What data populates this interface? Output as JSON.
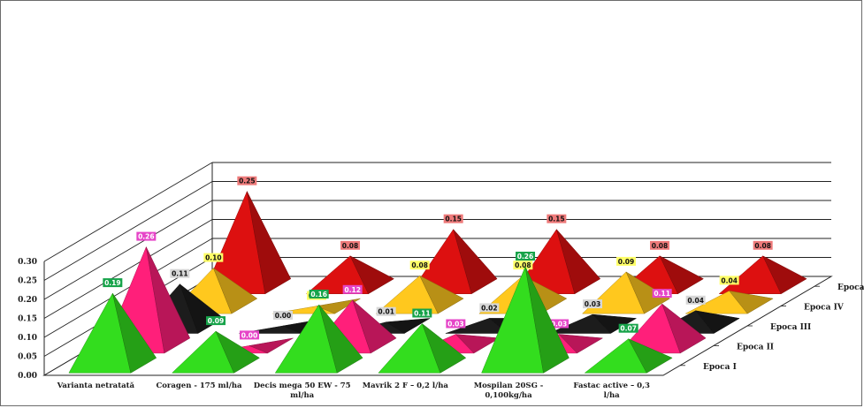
{
  "chart_data": {
    "type": "bar",
    "subtype": "3d-pyramid",
    "title": "",
    "xlabel": "",
    "ylabel": "",
    "ylim": [
      0,
      0.3
    ],
    "yticks": [
      "0.00",
      "0.05",
      "0.10",
      "0.15",
      "0.20",
      "0.25",
      "0.30"
    ],
    "grid": true,
    "legend": "series labels on depth axis (right)",
    "categories": [
      "Varianta netratată",
      "Coragen - 175 ml/ha",
      "Decis mega 50 EW - 75 ml/ha",
      "Mavrik 2 F – 0,2 l/ha",
      "Mospilan 20SG - 0,100kg/ha",
      "Fastac active – 0,3 l/ha"
    ],
    "series": [
      {
        "name": "Epoca I",
        "color": "#33dd1e",
        "label_bg": "#17a34a",
        "label_fg": "#ffffff",
        "values": [
          0.19,
          0.09,
          0.16,
          0.11,
          0.26,
          0.07
        ]
      },
      {
        "name": "Epoca II",
        "color": "#ff1f7a",
        "label_bg": "#e645c8",
        "label_fg": "#ffffff",
        "values": [
          0.26,
          0.0,
          0.12,
          0.03,
          0.03,
          0.11
        ]
      },
      {
        "name": "Epoca III",
        "color": "#1c1c1c",
        "label_bg": "#d6d6d6",
        "label_fg": "#111111",
        "values": [
          0.11,
          0.0,
          0.01,
          0.02,
          0.03,
          0.04
        ]
      },
      {
        "name": "Epoca IV",
        "color": "#ffc81e",
        "label_bg": "#ffff66",
        "label_fg": "#111111",
        "values": [
          0.1,
          0.0,
          0.08,
          0.08,
          0.09,
          0.04
        ]
      },
      {
        "name": "Epoca V",
        "color": "#dd1010",
        "label_bg": "#ee7a7a",
        "label_fg": "#111111",
        "values": [
          0.25,
          0.08,
          0.15,
          0.15,
          0.08,
          0.08
        ]
      }
    ]
  }
}
